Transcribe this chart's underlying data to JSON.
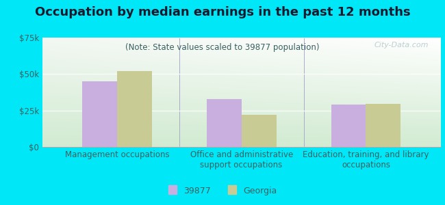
{
  "title": "Occupation by median earnings in the past 12 months",
  "subtitle": "(Note: State values scaled to 39877 population)",
  "categories": [
    "Management occupations",
    "Office and administrative\nsupport occupations",
    "Education, training, and library\noccupations"
  ],
  "values_39877": [
    45000,
    33000,
    29000
  ],
  "values_georgia": [
    52000,
    22000,
    29500
  ],
  "bar_color_39877": "#c9aee0",
  "bar_color_georgia": "#c8cc94",
  "background_outer": "#00e8f8",
  "ylim": [
    0,
    75000
  ],
  "yticks": [
    0,
    25000,
    50000,
    75000
  ],
  "ytick_labels": [
    "$0",
    "$25k",
    "$50k",
    "$75k"
  ],
  "legend_label_1": "39877",
  "legend_label_2": "Georgia",
  "bar_width": 0.28,
  "title_fontsize": 13,
  "subtitle_fontsize": 8.5,
  "axis_fontsize": 8.5,
  "watermark_text": "City-Data.com",
  "title_color": "#1a1a2e",
  "subtitle_color": "#3a6060",
  "tick_color": "#3a6060"
}
